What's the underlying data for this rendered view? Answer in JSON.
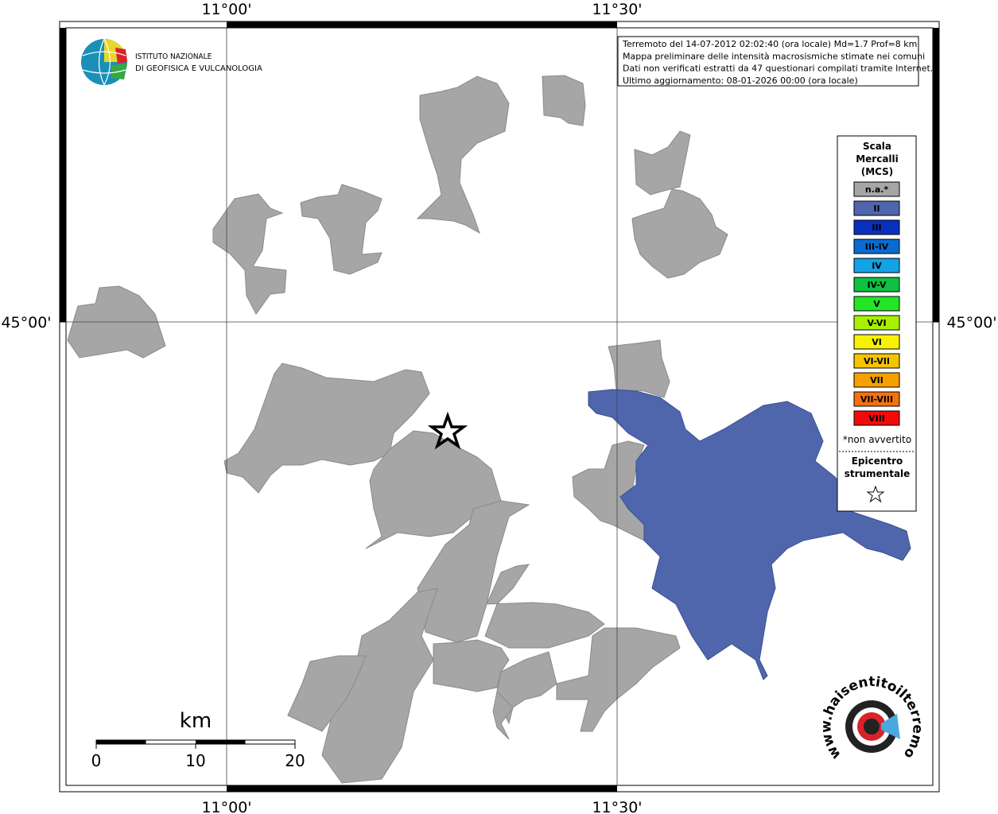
{
  "graticule": {
    "lon_labels": [
      "11°00'",
      "11°30'"
    ],
    "lat_labels": [
      "45°00'"
    ]
  },
  "logo": {
    "line1": "ISTITUTO NAZIONALE",
    "line2": "DI GEOFISICA E VULCANOLOGIA"
  },
  "info": [
    "Terremoto del 14-07-2012 02:02:40 (ora locale) Md=1.7 Prof=8 km",
    "Mappa preliminare delle intensità macrosismiche stimate nei comuni",
    "Dati non verificati estratti da 47 questionari compilati tramite Internet.",
    "Ultimo aggiornamento: 08-01-2026 00:00 (ora locale)"
  ],
  "legend": {
    "title": [
      "Scala",
      "Mercalli",
      "(MCS)"
    ],
    "items": [
      {
        "label": "n.a.*",
        "color": "#a6a6a6"
      },
      {
        "label": "II",
        "color": "#4f66ad"
      },
      {
        "label": "III",
        "color": "#0a30c0"
      },
      {
        "label": "III-IV",
        "color": "#0a6cd0"
      },
      {
        "label": "IV",
        "color": "#12a2e6"
      },
      {
        "label": "IV-V",
        "color": "#10c040"
      },
      {
        "label": "V",
        "color": "#22e626"
      },
      {
        "label": "V-VI",
        "color": "#a8f000"
      },
      {
        "label": "VI",
        "color": "#f6f200"
      },
      {
        "label": "VI-VII",
        "color": "#f4c400"
      },
      {
        "label": "VII",
        "color": "#f6a000"
      },
      {
        "label": "VII-VIII",
        "color": "#f47010"
      },
      {
        "label": "VIII",
        "color": "#f20a0a"
      }
    ],
    "note": "*non avvertito",
    "epicenter": [
      "Epicentro",
      "strumentale"
    ]
  },
  "scale_bar": {
    "unit": "km",
    "labels": [
      0,
      10,
      20
    ]
  },
  "site": "www.haisentitoilterremoto.it"
}
